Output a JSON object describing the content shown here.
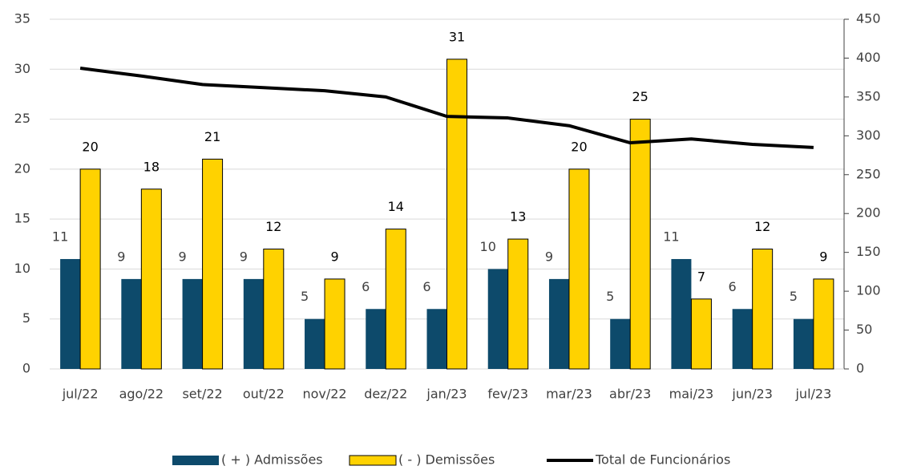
{
  "chart_data": {
    "type": "bar_line",
    "categories": [
      "jul/22",
      "ago/22",
      "set/22",
      "out/22",
      "nov/22",
      "dez/22",
      "jan/23",
      "fev/23",
      "mar/23",
      "abr/23",
      "mai/23",
      "jun/23",
      "jul/23"
    ],
    "series": [
      {
        "name": "( + ) Admissões",
        "color": "#0d4a6b",
        "type": "bar",
        "values": [
          11,
          9,
          9,
          9,
          5,
          6,
          6,
          10,
          9,
          5,
          11,
          6,
          5
        ]
      },
      {
        "name": "( - ) Demissões",
        "color": "#ffd200",
        "type": "bar",
        "values": [
          20,
          18,
          21,
          12,
          9,
          14,
          31,
          13,
          20,
          25,
          7,
          12,
          9
        ]
      },
      {
        "name": "Total de Funcionários",
        "color": "#000000",
        "type": "line",
        "axis": "y2",
        "values": [
          387,
          377,
          366,
          362,
          358,
          350,
          325,
          323,
          313,
          291,
          296,
          289,
          285
        ]
      }
    ],
    "ylim": [
      0,
      35
    ],
    "yticks": [
      0,
      5,
      10,
      15,
      20,
      25,
      30,
      35
    ],
    "y2lim": [
      0,
      450
    ],
    "y2ticks": [
      0,
      50,
      100,
      150,
      200,
      250,
      300,
      350,
      400,
      450
    ],
    "grid": true,
    "legend": "bottom"
  }
}
